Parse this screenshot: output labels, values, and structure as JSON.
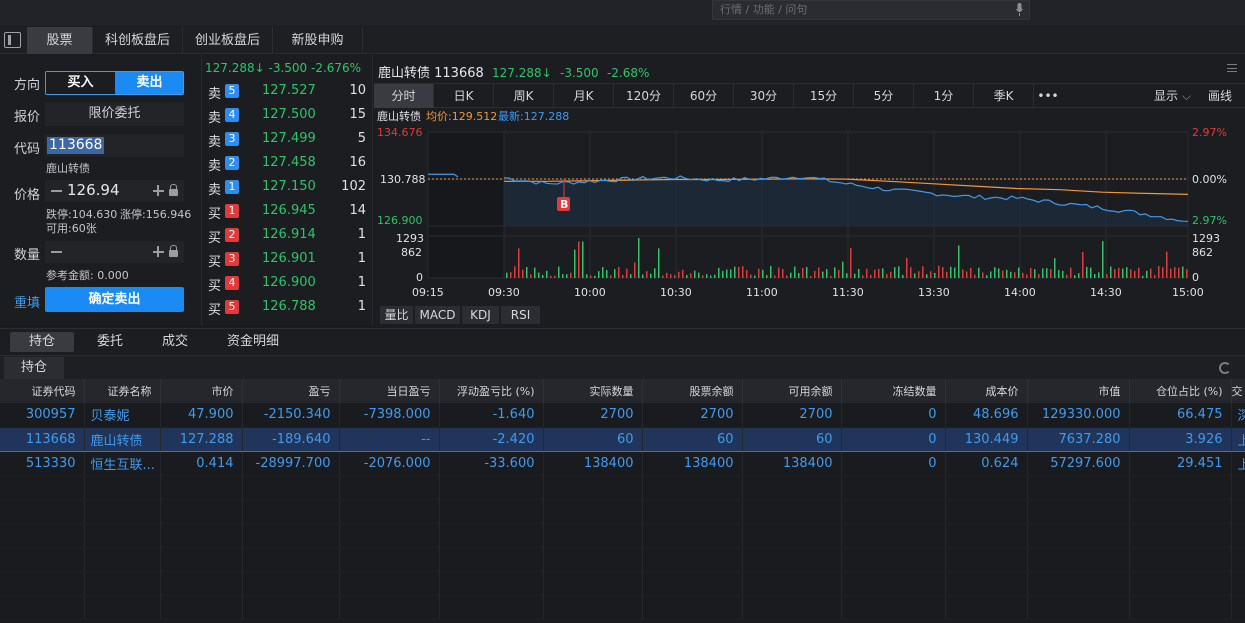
{
  "topbar": {
    "search_placeholder": "行情 / 功能 / 问句"
  },
  "main_tabs": [
    "股票",
    "科创板盘后",
    "创业板盘后",
    "新股申购"
  ],
  "order": {
    "direction_label": "方向",
    "buy": "买入",
    "sell": "卖出",
    "price_type_label": "报价",
    "price_type": "限价委托",
    "code_label": "代码",
    "code": "113668",
    "stock_name": "鹿山转债",
    "price_label": "价格",
    "price": "126.94",
    "limit_down": "跌停:104.630",
    "limit_up": "涨停:156.946",
    "available": "可用:60张",
    "qty_label": "数量",
    "ref_amount": "参考金额: 0.000",
    "reset": "重填",
    "confirm": "确定卖出"
  },
  "book": {
    "header": "127.288↓  -3.500  -2.676%",
    "rows": [
      {
        "side": "卖",
        "n": "5",
        "price": "127.527",
        "vol": "10"
      },
      {
        "side": "卖",
        "n": "4",
        "price": "127.500",
        "vol": "15"
      },
      {
        "side": "卖",
        "n": "3",
        "price": "127.499",
        "vol": "5"
      },
      {
        "side": "卖",
        "n": "2",
        "price": "127.458",
        "vol": "16"
      },
      {
        "side": "卖",
        "n": "1",
        "price": "127.150",
        "vol": "102"
      },
      {
        "side": "买",
        "n": "1",
        "price": "126.945",
        "vol": "14"
      },
      {
        "side": "买",
        "n": "2",
        "price": "126.914",
        "vol": "1"
      },
      {
        "side": "买",
        "n": "3",
        "price": "126.901",
        "vol": "1"
      },
      {
        "side": "买",
        "n": "4",
        "price": "126.900",
        "vol": "1"
      },
      {
        "side": "买",
        "n": "5",
        "price": "126.788",
        "vol": "1"
      }
    ],
    "colors": {
      "sell": "#2f8df0",
      "buy": "#e03a3a"
    }
  },
  "chart": {
    "title": "鹿山转债 113668",
    "last": "127.288↓",
    "change": "-3.500",
    "pct": "-2.68%",
    "periods": [
      "分时",
      "日K",
      "周K",
      "月K",
      "120分",
      "60分",
      "30分",
      "15分",
      "5分",
      "1分",
      "季K",
      "•••"
    ],
    "display": "显示",
    "draw": "画线",
    "legend_name": "鹿山转债",
    "legend_avg": "均价:129.512",
    "legend_last": "最新:127.288",
    "price_labels_left": [
      "134.676",
      "130.788",
      "126.900"
    ],
    "pct_labels_right": [
      "2.97%",
      "0.00%",
      "2.97%"
    ],
    "vol_labels": [
      "1293",
      "862",
      "0"
    ],
    "times": [
      "09:15",
      "09:30",
      "10:00",
      "10:30",
      "11:00",
      "11:30",
      "13:30",
      "14:00",
      "14:30",
      "15:00"
    ],
    "marker": "B",
    "indicators": [
      "量比",
      "MACD",
      "KDJ",
      "RSI"
    ]
  },
  "chart_data": {
    "type": "line",
    "x": [
      "09:30",
      "09:45",
      "10:00",
      "10:15",
      "10:30",
      "10:45",
      "11:00",
      "11:15",
      "11:30",
      "13:15",
      "13:30",
      "13:45",
      "14:00",
      "14:15",
      "14:30",
      "14:45",
      "15:00"
    ],
    "series": [
      {
        "name": "最新",
        "values": [
          130.9,
          130.4,
          130.6,
          130.8,
          130.9,
          130.7,
          130.8,
          131.0,
          130.4,
          129.9,
          129.6,
          129.3,
          129.2,
          128.8,
          128.4,
          127.9,
          127.288
        ]
      },
      {
        "name": "均价",
        "values": [
          130.6,
          130.6,
          130.65,
          130.7,
          130.75,
          130.75,
          130.78,
          130.8,
          130.78,
          130.6,
          130.4,
          130.2,
          130.0,
          129.9,
          129.7,
          129.6,
          129.512
        ]
      }
    ],
    "ylim": [
      126.9,
      134.676
    ],
    "reference": 130.788
  },
  "bottom_tabs": [
    "持仓",
    "委托",
    "成交",
    "资金明细"
  ],
  "sub_tab": "持仓",
  "table": {
    "columns": [
      "证券代码",
      "证券名称",
      "市价",
      "盈亏",
      "当日盈亏",
      "浮动盈亏比 (%)",
      "实际数量",
      "股票余额",
      "可用余额",
      "冻结数量",
      "成本价",
      "市值",
      "仓位占比 (%)",
      "交"
    ],
    "rows": [
      [
        "300957",
        "贝泰妮",
        "47.900",
        "-2150.340",
        "-7398.000",
        "-1.640",
        "2700",
        "2700",
        "2700",
        "0",
        "48.696",
        "129330.000",
        "66.475",
        "深圳"
      ],
      [
        "113668",
        "鹿山转债",
        "127.288",
        "-189.640",
        "--",
        "-2.420",
        "60",
        "60",
        "60",
        "0",
        "130.449",
        "7637.280",
        "3.926",
        "上海"
      ],
      [
        "513330",
        "恒生互联...",
        "0.414",
        "-28997.700",
        "-2076.000",
        "-33.600",
        "138400",
        "138400",
        "138400",
        "0",
        "0.624",
        "57297.600",
        "29.451",
        "上海"
      ]
    ]
  }
}
